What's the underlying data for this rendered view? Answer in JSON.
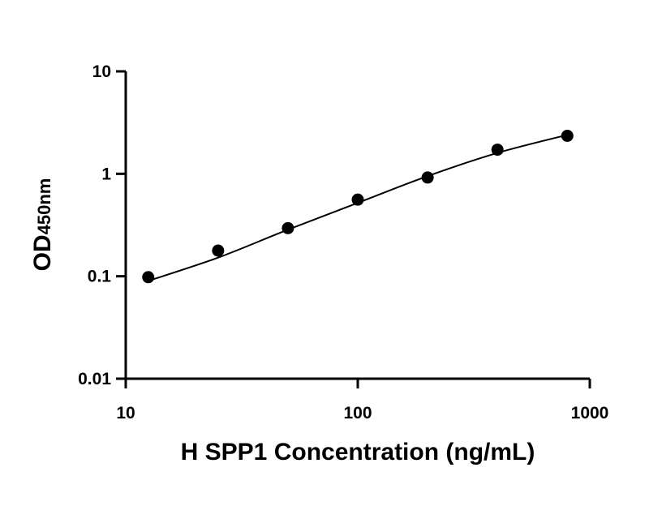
{
  "chart_data": {
    "type": "scatter",
    "title": "",
    "xlabel": "H SPP1 Concentration (ng/mL)",
    "ylabel": {
      "main": "OD",
      "subscript": "450nm"
    },
    "x_scale": "log",
    "y_scale": "log",
    "xlim": [
      10,
      1000
    ],
    "ylim": [
      0.01,
      10
    ],
    "x_ticks": [
      10,
      100,
      1000
    ],
    "x_tick_labels": [
      "10",
      "100",
      "1000"
    ],
    "y_ticks": [
      0.01,
      0.1,
      1,
      10
    ],
    "y_tick_labels": [
      "0.01",
      "0.1",
      "1",
      "10"
    ],
    "grid": false,
    "series": [
      {
        "type": "scatter",
        "x": [
          12.5,
          25,
          50,
          100,
          200,
          400,
          800
        ],
        "y": [
          0.098,
          0.178,
          0.295,
          0.56,
          0.92,
          1.72,
          2.35
        ]
      },
      {
        "type": "line",
        "x": [
          12.5,
          25,
          50,
          100,
          200,
          400,
          800
        ],
        "y": [
          0.09,
          0.152,
          0.285,
          0.52,
          0.95,
          1.6,
          2.4
        ]
      }
    ],
    "colors": {
      "points": "#000000",
      "curve": "#000000",
      "axes": "#000000"
    }
  }
}
